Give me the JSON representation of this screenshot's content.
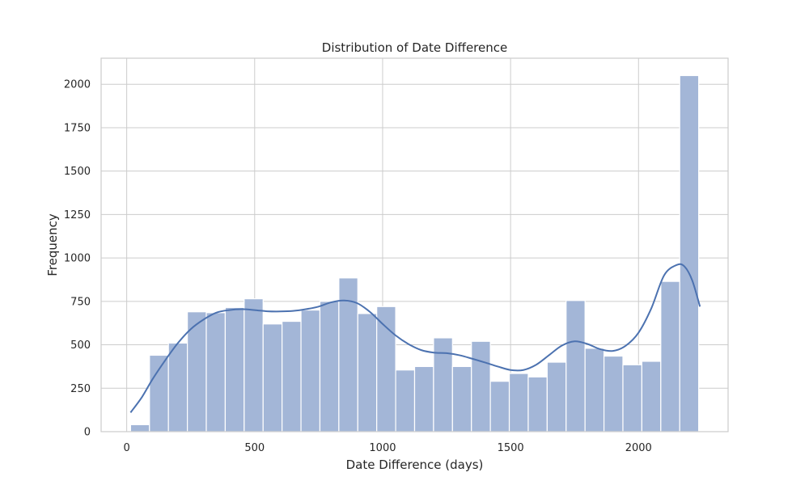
{
  "chart_data": {
    "type": "histogram",
    "title": "Distribution of Date Difference",
    "xlabel": "Date Difference (days)",
    "ylabel": "Frequency",
    "xlim": [
      -100,
      2350
    ],
    "ylim": [
      0,
      2150
    ],
    "x_ticks": [
      0,
      500,
      1000,
      1500,
      2000
    ],
    "y_ticks": [
      0,
      250,
      500,
      750,
      1000,
      1250,
      1500,
      1750,
      2000
    ],
    "grid": true,
    "bar_color": "#a3b6d7",
    "kde_color": "#4c72b0",
    "bins": [
      {
        "x0": 15,
        "x1": 89,
        "count": 40
      },
      {
        "x0": 89,
        "x1": 163,
        "count": 440
      },
      {
        "x0": 163,
        "x1": 237,
        "count": 510
      },
      {
        "x0": 237,
        "x1": 311,
        "count": 690
      },
      {
        "x0": 311,
        "x1": 385,
        "count": 685
      },
      {
        "x0": 385,
        "x1": 459,
        "count": 715
      },
      {
        "x0": 459,
        "x1": 533,
        "count": 765
      },
      {
        "x0": 533,
        "x1": 607,
        "count": 620
      },
      {
        "x0": 607,
        "x1": 681,
        "count": 635
      },
      {
        "x0": 681,
        "x1": 755,
        "count": 700
      },
      {
        "x0": 755,
        "x1": 829,
        "count": 750
      },
      {
        "x0": 829,
        "x1": 903,
        "count": 885
      },
      {
        "x0": 903,
        "x1": 977,
        "count": 680
      },
      {
        "x0": 977,
        "x1": 1051,
        "count": 720
      },
      {
        "x0": 1051,
        "x1": 1125,
        "count": 355
      },
      {
        "x0": 1125,
        "x1": 1199,
        "count": 375
      },
      {
        "x0": 1199,
        "x1": 1273,
        "count": 540
      },
      {
        "x0": 1273,
        "x1": 1347,
        "count": 375
      },
      {
        "x0": 1347,
        "x1": 1421,
        "count": 520
      },
      {
        "x0": 1421,
        "x1": 1495,
        "count": 290
      },
      {
        "x0": 1495,
        "x1": 1569,
        "count": 335
      },
      {
        "x0": 1569,
        "x1": 1643,
        "count": 315
      },
      {
        "x0": 1643,
        "x1": 1717,
        "count": 400
      },
      {
        "x0": 1717,
        "x1": 1791,
        "count": 755
      },
      {
        "x0": 1791,
        "x1": 1865,
        "count": 480
      },
      {
        "x0": 1865,
        "x1": 1939,
        "count": 435
      },
      {
        "x0": 1939,
        "x1": 2013,
        "count": 385
      },
      {
        "x0": 2013,
        "x1": 2087,
        "count": 405
      },
      {
        "x0": 2087,
        "x1": 2161,
        "count": 865
      },
      {
        "x0": 2161,
        "x1": 2235,
        "count": 2050
      }
    ],
    "kde": {
      "x": [
        15,
        60,
        100,
        150,
        200,
        250,
        300,
        350,
        400,
        450,
        500,
        550,
        600,
        650,
        700,
        750,
        800,
        850,
        900,
        950,
        1000,
        1050,
        1100,
        1150,
        1200,
        1250,
        1300,
        1350,
        1400,
        1450,
        1500,
        1550,
        1600,
        1650,
        1700,
        1750,
        1800,
        1850,
        1900,
        1950,
        2000,
        2050,
        2100,
        2150,
        2180,
        2210,
        2240
      ],
      "y": [
        110,
        200,
        300,
        410,
        510,
        590,
        645,
        685,
        700,
        705,
        700,
        693,
        692,
        695,
        705,
        720,
        745,
        755,
        740,
        690,
        620,
        555,
        505,
        470,
        455,
        452,
        440,
        420,
        398,
        375,
        355,
        355,
        385,
        440,
        495,
        520,
        505,
        475,
        465,
        495,
        570,
        710,
        900,
        960,
        950,
        870,
        720
      ]
    }
  }
}
